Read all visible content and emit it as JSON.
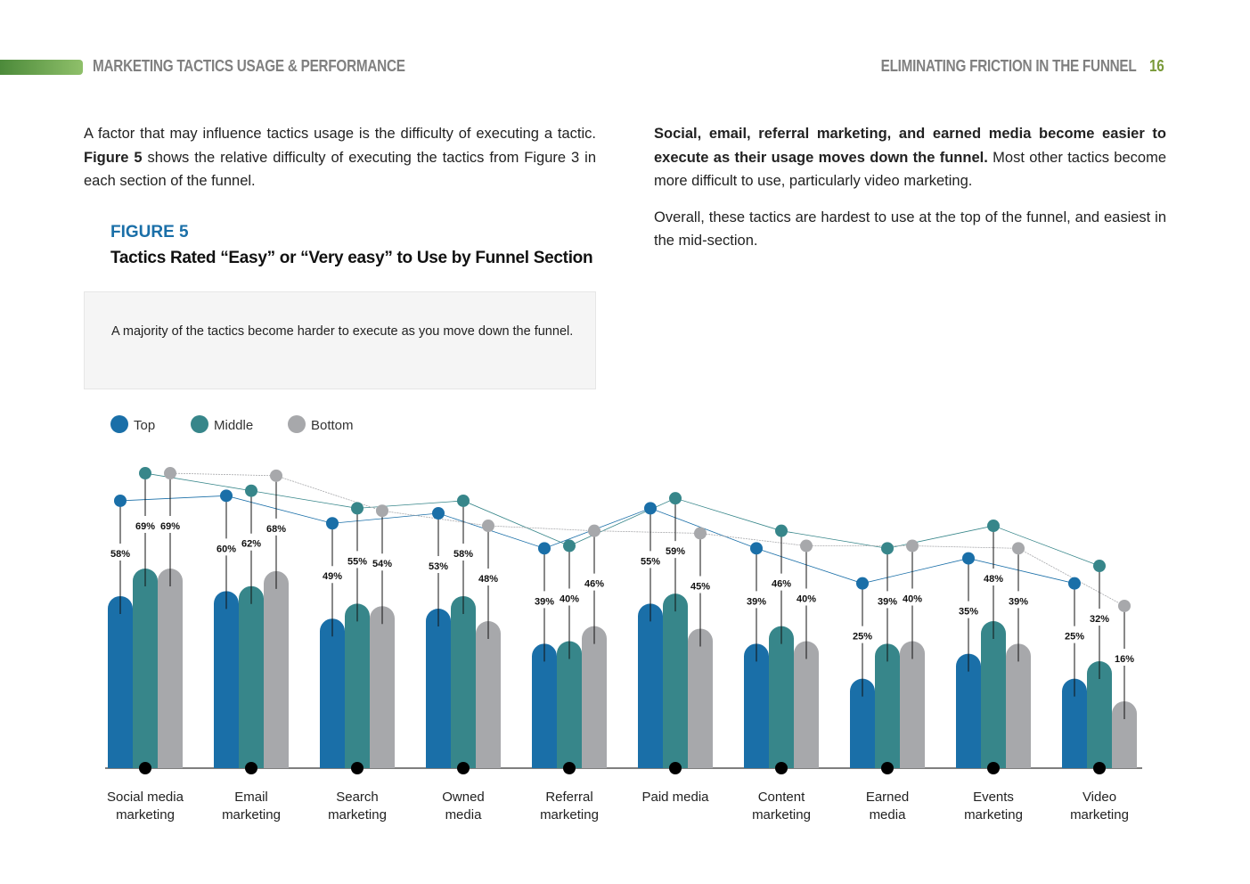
{
  "header": {
    "section": "MARKETING TACTICS USAGE & PERFORMANCE",
    "report": "ELIMINATING FRICTION IN THE FUNNEL",
    "page": "16"
  },
  "left_text": [
    "A factor that may influence tactics usage is the difficulty of executing a tactic. ",
    "Figure 5",
    " shows the relative difficulty of executing the tactics from Figure 3 in each section of the funnel."
  ],
  "right_text": [
    [
      "Social, email, referral marketing, and earned media become easier to execute as their usage moves down the funnel.",
      " Most other tactics become more difficult to use, particularly video marketing."
    ],
    [
      "Overall, these tactics are hardest to use at the top of the funnel, and easiest in the mid-section."
    ]
  ],
  "figure": {
    "label": "FIGURE 5",
    "title": "Tactics Rated “Easy” or “Very easy” to Use by Funnel Section",
    "note": "A majority of the tactics become harder to execute as you move down the funnel."
  },
  "chart_data": {
    "type": "bar",
    "categories": [
      "Social media\nmarketing",
      "Email\nmarketing",
      "Search\nmarketing",
      "Owned\nmedia",
      "Referral\nmarketing",
      "Paid media",
      "Content\nmarketing",
      "Earned\nmedia",
      "Events\nmarketing",
      "Video\nmarketing"
    ],
    "series": [
      {
        "name": "Top",
        "color": "#1a6fa8",
        "values": [
          58,
          60,
          49,
          53,
          39,
          55,
          39,
          25,
          35,
          25
        ],
        "value_labels": [
          "58%",
          "60%",
          "49%",
          "53%",
          "39%",
          "55%",
          "39%",
          "25%",
          "35%",
          "25%"
        ]
      },
      {
        "name": "Middle",
        "color": "#37868a",
        "values": [
          69,
          62,
          55,
          58,
          40,
          59,
          46,
          39,
          48,
          32
        ],
        "value_labels": [
          "69%",
          "62%",
          "55%",
          "58%",
          "40%",
          "59%",
          "46%",
          "39%",
          "48%",
          "32%"
        ]
      },
      {
        "name": "Bottom",
        "color": "#a7a8ab",
        "values": [
          69,
          68,
          54,
          48,
          46,
          45,
          40,
          40,
          39,
          16
        ],
        "value_labels": [
          "69%",
          "68%",
          "54%",
          "48%",
          "46%",
          "45%",
          "40%",
          "40%",
          "39%",
          "16%"
        ]
      }
    ],
    "ylim": [
      -10.7,
      80
    ]
  }
}
